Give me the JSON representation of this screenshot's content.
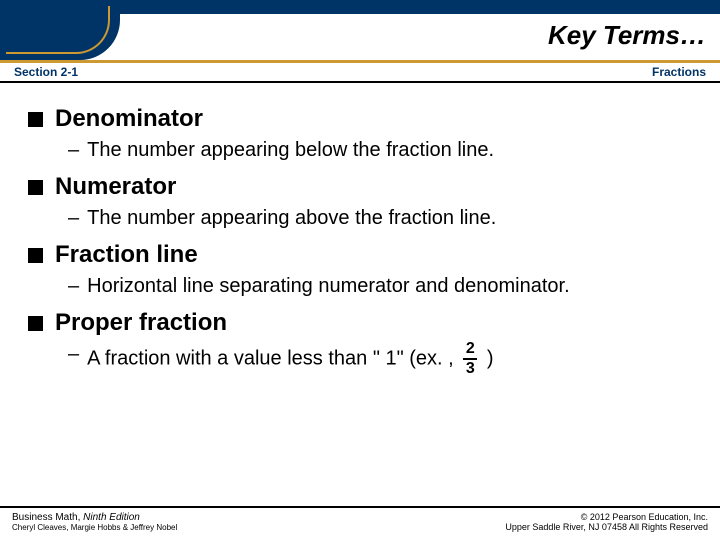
{
  "header": {
    "title": "Key Terms…",
    "section_left": "Section 2-1",
    "section_right": "Fractions",
    "top_bar_color": "#003366",
    "accent_color": "#cc9933"
  },
  "terms": [
    {
      "name": "Denominator",
      "definition": "The number appearing below the fraction line."
    },
    {
      "name": "Numerator",
      "definition": "The number appearing above the fraction line."
    },
    {
      "name": "Fraction line",
      "definition": "Horizontal line separating numerator and denominator."
    },
    {
      "name": "Proper fraction",
      "definition_prefix": "A fraction with a value less than \" 1\" (ex. , ",
      "fraction": {
        "num": "2",
        "den": "3"
      },
      "definition_suffix": " )"
    }
  ],
  "footer": {
    "left_line1_a": "Business Math, ",
    "left_line1_b": "Ninth Edition",
    "left_line2": "Cheryl Cleaves, Margie Hobbs & Jeffrey Nobel",
    "right_line1": "© 2012 Pearson Education, Inc.",
    "right_line2": "Upper Saddle River, NJ 07458 All Rights Reserved"
  }
}
